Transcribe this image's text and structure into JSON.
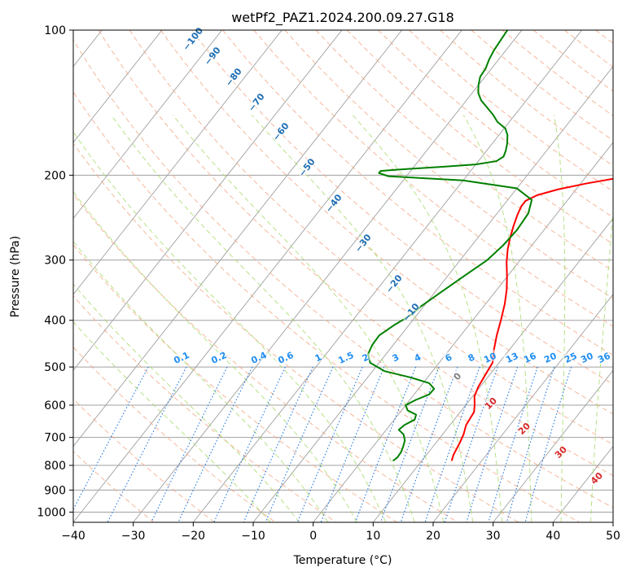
{
  "chart_data": {
    "type": "line",
    "diagram": "skew-T log-P",
    "title": "wetPf2_PAZ1.2024.200.09.27.G18",
    "xlabel": "Temperature (°C)",
    "ylabel": "Pressure (hPa)",
    "xlim": [
      -40,
      50
    ],
    "ylim": [
      1050,
      100
    ],
    "y_scale": "log",
    "x_ticks": [
      "−40",
      "−30",
      "−20",
      "−10",
      "0",
      "10",
      "20",
      "30",
      "40",
      "50"
    ],
    "y_ticks": [
      "100",
      "200",
      "300",
      "400",
      "500",
      "600",
      "700",
      "800",
      "900",
      "1000"
    ],
    "grid": true,
    "series": [
      {
        "color": "#ff0000",
        "points": [
          [
            15.0,
            783
          ],
          [
            14.5,
            760
          ],
          [
            14.0,
            720
          ],
          [
            13.5,
            690
          ],
          [
            12.7,
            660
          ],
          [
            12.5,
            640
          ],
          [
            12.3,
            620
          ],
          [
            11.5,
            600
          ],
          [
            10.3,
            575
          ],
          [
            9.7,
            550
          ],
          [
            9.3,
            520
          ],
          [
            8.9,
            490
          ],
          [
            7.4,
            460
          ],
          [
            6.0,
            430
          ],
          [
            4.7,
            400
          ],
          [
            3.2,
            370
          ],
          [
            1.6,
            345
          ],
          [
            0.0,
            325
          ],
          [
            -2.0,
            303
          ],
          [
            -3.5,
            285
          ],
          [
            -4.6,
            270
          ],
          [
            -5.6,
            255
          ],
          [
            -6.4,
            242
          ],
          [
            -6.9,
            232
          ],
          [
            -6.9,
            226
          ],
          [
            -5.7,
            220
          ],
          [
            -3.0,
            214
          ],
          [
            1.0,
            208
          ],
          [
            6.0,
            202
          ],
          [
            10.0,
            198
          ],
          [
            13.3,
            193
          ],
          [
            14.5,
            189
          ],
          [
            14.6,
            186
          ],
          [
            15.0,
            180
          ],
          [
            15.6,
            175
          ],
          [
            16.0,
            170
          ],
          [
            16.7,
            165
          ],
          [
            17.5,
            160
          ],
          [
            18.8,
            155
          ],
          [
            19.6,
            150
          ],
          [
            21.0,
            145
          ],
          [
            23.0,
            140
          ],
          [
            23.5,
            135
          ],
          [
            24.3,
            130
          ],
          [
            25.0,
            125
          ],
          [
            25.3,
            120
          ],
          [
            26.0,
            115
          ],
          [
            26.8,
            110
          ],
          [
            28.1,
            105
          ],
          [
            29.3,
            100
          ]
        ]
      },
      {
        "color": "#008000",
        "points": [
          [
            5.2,
            783
          ],
          [
            5.5,
            770
          ],
          [
            5.4,
            750
          ],
          [
            5.0,
            730
          ],
          [
            4.5,
            710
          ],
          [
            3.5,
            690
          ],
          [
            2.1,
            675
          ],
          [
            2.4,
            660
          ],
          [
            3.4,
            643
          ],
          [
            3.0,
            628
          ],
          [
            1.0,
            615
          ],
          [
            0.0,
            600
          ],
          [
            1.0,
            585
          ],
          [
            2.5,
            570
          ],
          [
            2.6,
            555
          ],
          [
            1.0,
            540
          ],
          [
            -3.0,
            525
          ],
          [
            -8.0,
            510
          ],
          [
            -11.5,
            490
          ],
          [
            -13.0,
            470
          ],
          [
            -13.5,
            450
          ],
          [
            -13.6,
            430
          ],
          [
            -12.5,
            410
          ],
          [
            -11.0,
            390
          ],
          [
            -10.5,
            375
          ],
          [
            -9.0,
            350
          ],
          [
            -7.0,
            320
          ],
          [
            -5.5,
            300
          ],
          [
            -4.8,
            280
          ],
          [
            -4.5,
            260
          ],
          [
            -4.8,
            240
          ],
          [
            -6.0,
            225
          ],
          [
            -10.0,
            213
          ],
          [
            -20.0,
            205
          ],
          [
            -33.0,
            201
          ],
          [
            -35.0,
            198
          ],
          [
            -35.0,
            196
          ],
          [
            -33.0,
            195
          ],
          [
            -25.0,
            192
          ],
          [
            -20.0,
            190
          ],
          [
            -17.0,
            187
          ],
          [
            -16.4,
            183
          ],
          [
            -16.8,
            178
          ],
          [
            -17.5,
            172
          ],
          [
            -18.6,
            165
          ],
          [
            -19.8,
            160
          ],
          [
            -22.0,
            155
          ],
          [
            -23.6,
            150
          ],
          [
            -25.5,
            145
          ],
          [
            -27.5,
            140
          ],
          [
            -29.0,
            135
          ],
          [
            -30.0,
            130
          ],
          [
            -30.8,
            125
          ],
          [
            -31.0,
            120
          ],
          [
            -31.6,
            115
          ],
          [
            -32.0,
            110
          ],
          [
            -32.2,
            105
          ],
          [
            -32.4,
            100
          ]
        ]
      }
    ],
    "dry_adiabat_labels": [
      "−100",
      "−90",
      "−80",
      "−70",
      "−60",
      "−50",
      "−40",
      "−30",
      "−20",
      "−10"
    ],
    "moist_adiabat_labels": [
      "0",
      "10",
      "20",
      "30",
      "40"
    ],
    "mixing_ratio_labels": [
      "0.1",
      "0.2",
      "0.4",
      "0.6",
      "1",
      "1.5",
      "2",
      "3",
      "4",
      "6",
      "8",
      "10",
      "13",
      "16",
      "20",
      "25",
      "30",
      "36"
    ],
    "colors": {
      "temperature": "#ff0000",
      "dewpoint": "#008000",
      "isotherms": "#a0a0a0",
      "isobars": "#a0a0a0",
      "dry_adiabats": "#f4a582",
      "moist_adiabats": "#a6d96a",
      "mixing_ratio": "#1f77e4",
      "dry_adiabat_labels": "#1f6fb4",
      "moist_adiabat_labels": "#d62728",
      "mixing_ratio_labels": "#1f8ef1"
    }
  }
}
